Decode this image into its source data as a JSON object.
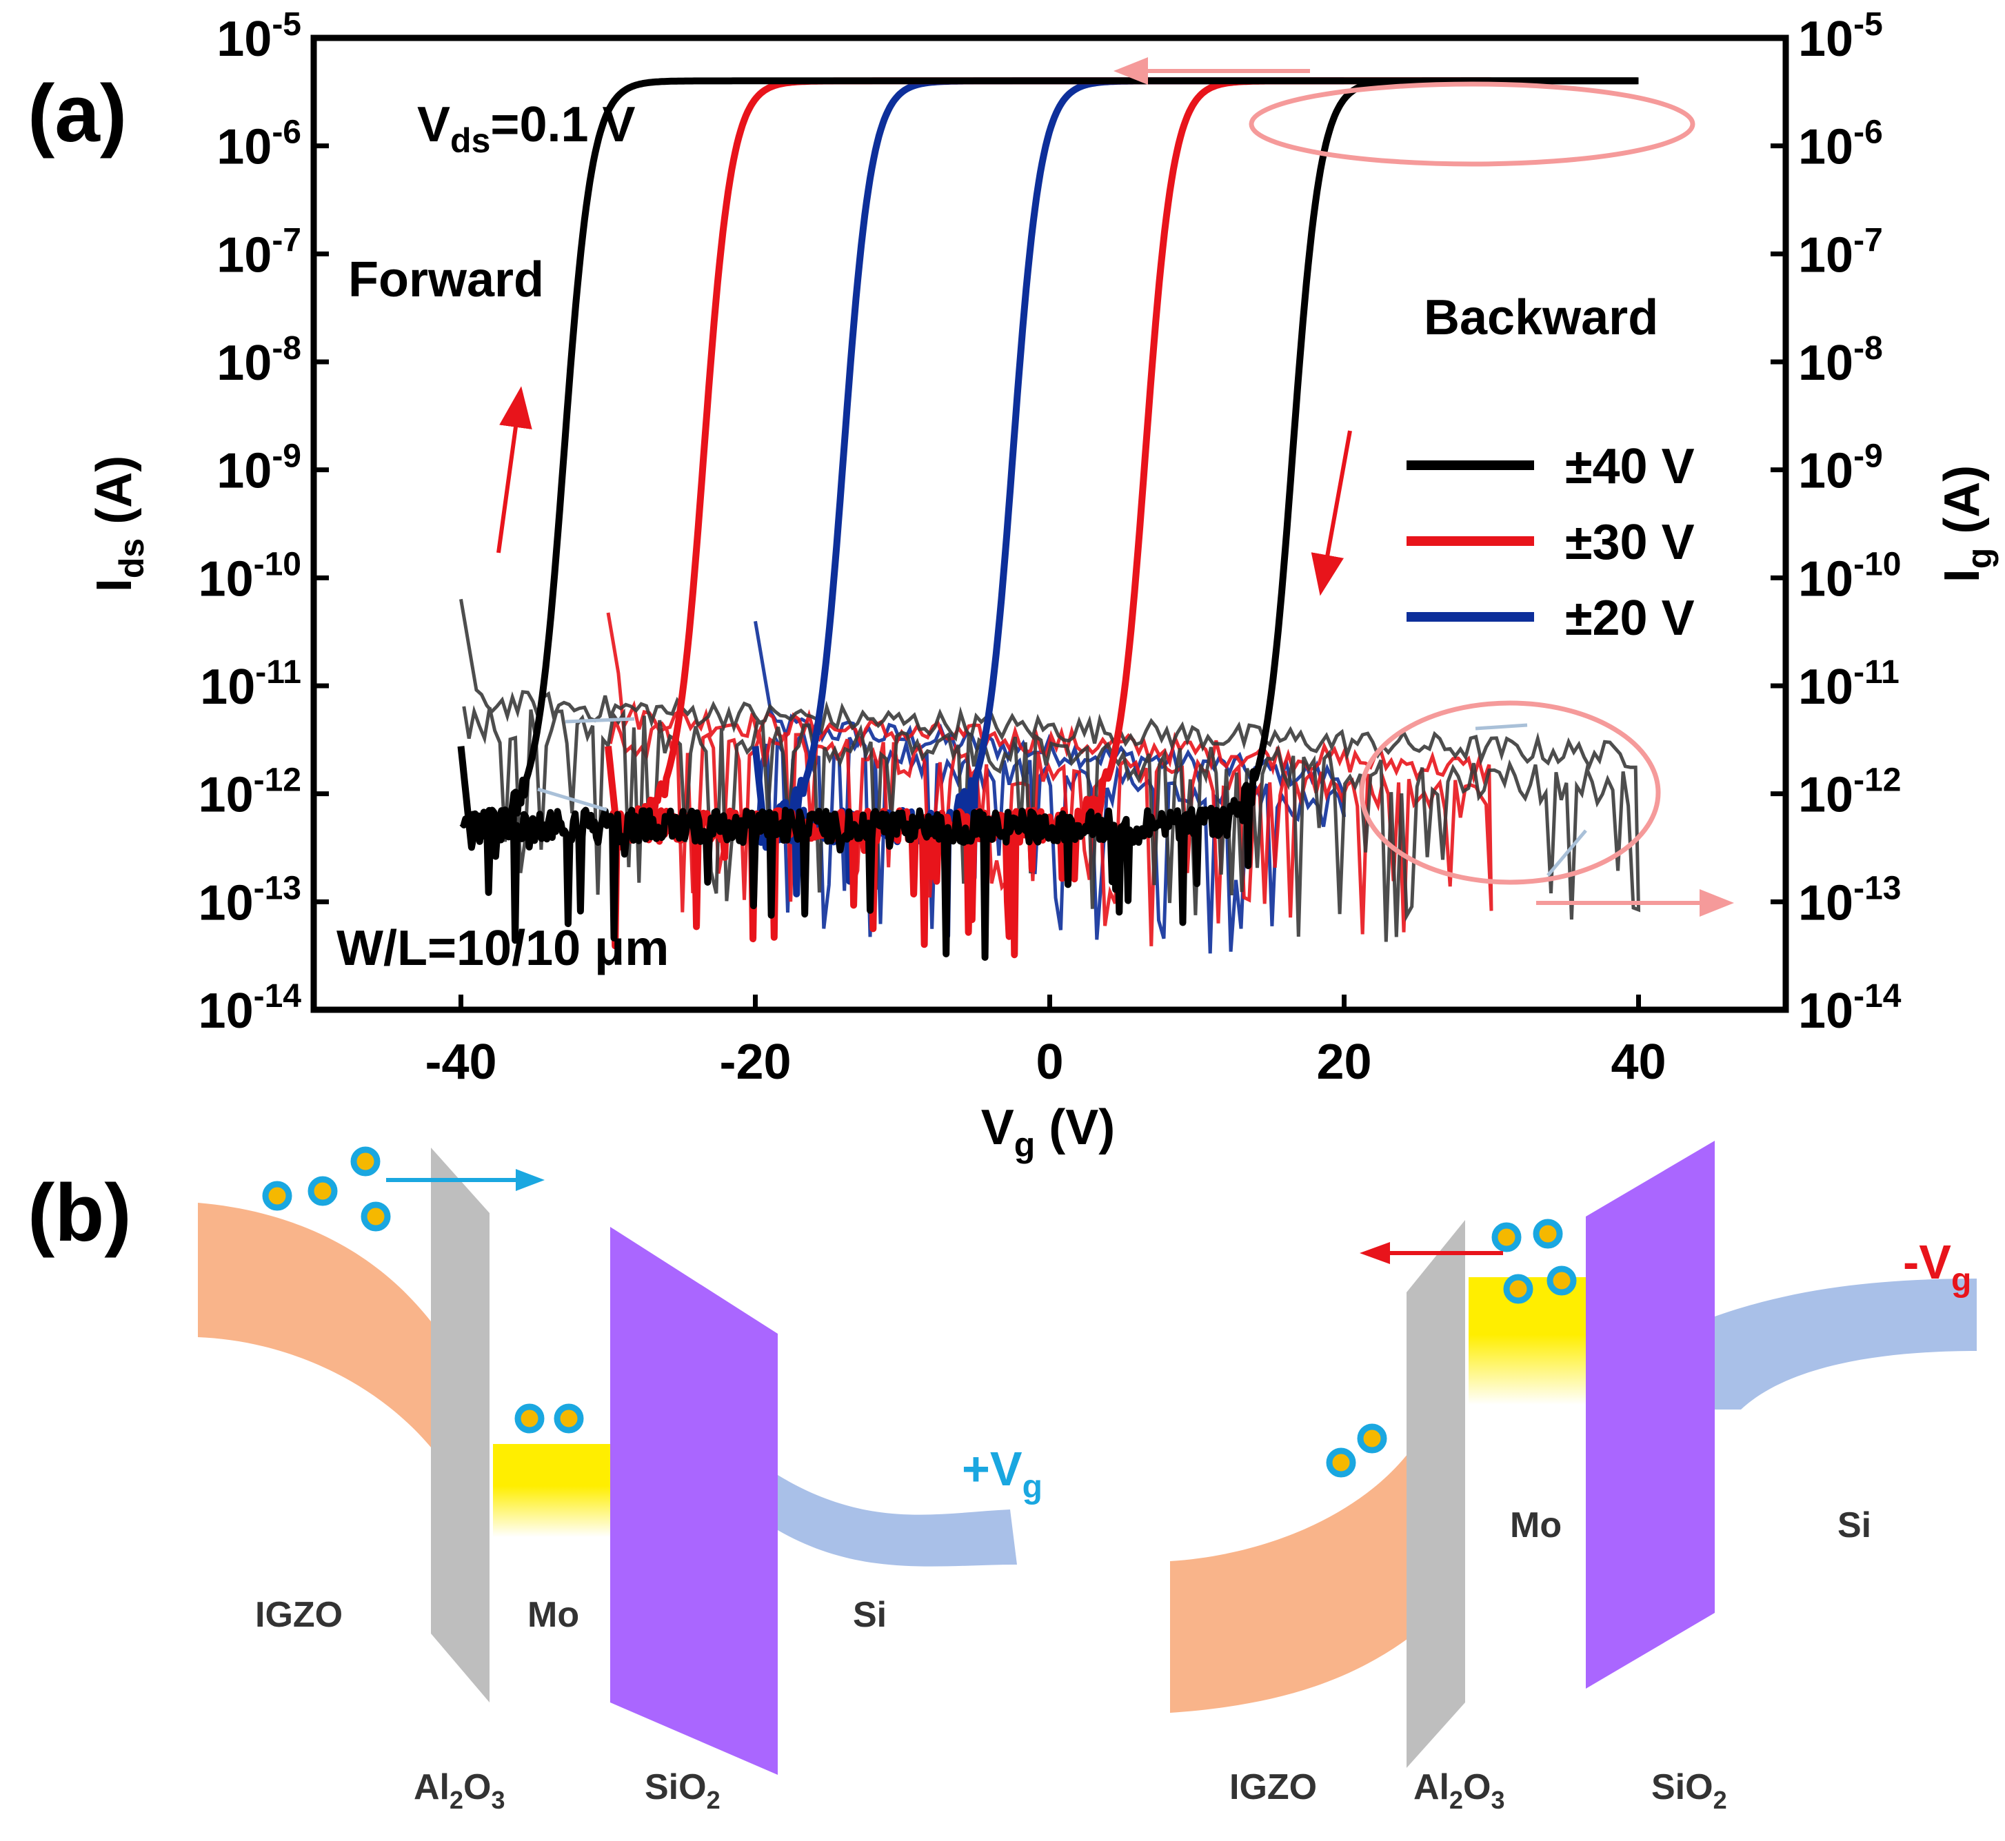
{
  "panel_labels": {
    "a": "(a)",
    "b": "(b)"
  },
  "chart_data": {
    "type": "line",
    "title": "",
    "xlabel": {
      "main": "V",
      "sub": "g",
      "unit": " (V)"
    },
    "ylabel_left": {
      "main": "I",
      "sub": "ds",
      "unit": " (A)"
    },
    "ylabel_right": {
      "main": "I",
      "sub": "g",
      "unit": " (A)"
    },
    "x_range": [
      -50,
      50
    ],
    "y_scale": "log",
    "y_exp_range": [
      -14,
      -5
    ],
    "x_ticks": [
      -40,
      -20,
      0,
      20,
      40
    ],
    "x_tick_labels": [
      "-40",
      "-20",
      "0",
      "20",
      "40"
    ],
    "y_tick_exponents": [
      -5,
      -6,
      -7,
      -8,
      -9,
      -10,
      -11,
      -12,
      -13,
      -14
    ],
    "y_tick_labels": [
      "-5",
      "-6",
      "-7",
      "-8",
      "-9",
      "-10",
      "-11",
      "-12",
      "-13",
      "-14"
    ],
    "y_tick_base": "10",
    "annotations": {
      "vds": {
        "main": "V",
        "sub": "ds",
        "rest": "=0.1 V"
      },
      "forward": "Forward",
      "backward": "Backward",
      "wl": "W/L=10/10 μm"
    },
    "legend_position": "right",
    "series": [
      {
        "name": "±40 V",
        "color": "#000000",
        "sweep_max": 40,
        "vth_forward": -35.5,
        "vth_backward": 14,
        "ion": 4e-06,
        "ioff": 5e-13,
        "ig_level": 4e-12
      },
      {
        "name": "±30 V",
        "color": "#e8141b",
        "sweep_max": 30,
        "vth_forward": -26,
        "vth_backward": 4,
        "ion": 4e-06,
        "ioff": 5e-13,
        "ig_level": 3e-12
      },
      {
        "name": "±20 V",
        "color": "#0d2f9a",
        "sweep_max": 20,
        "vth_forward": -16.5,
        "vth_backward": -5,
        "ion": 4e-06,
        "ioff": 5e-13,
        "ig_level": 2.5e-12
      }
    ]
  },
  "band_diagram": {
    "left": {
      "bias": {
        "sign": "+V",
        "sub": "g"
      },
      "labels": {
        "igzo": "IGZO",
        "mo": "Mo",
        "si": "Si",
        "al": "Al",
        "al_sub": "2",
        "o": "O",
        "o_sub": "3",
        "sio": "SiO",
        "sio_sub": "2"
      }
    },
    "right": {
      "bias": {
        "sign": "-V",
        "sub": "g"
      },
      "labels": {
        "igzo": "IGZO",
        "mo": "Mo",
        "si": "Si",
        "al": "Al",
        "al_sub": "2",
        "o": "O",
        "o_sub": "3",
        "sio": "SiO",
        "sio_sub": "2"
      }
    },
    "colors": {
      "igzo": "#f9b48a",
      "al2o3": "#bebebe",
      "mo": "#ffee00",
      "sio2": "#aa66ff",
      "si": "#a9c0e8",
      "electron": "#f5b800",
      "electron_ring": "#1aa7e0",
      "arrow_plus": "#1aa7e0",
      "arrow_minus": "#e8141b"
    }
  }
}
